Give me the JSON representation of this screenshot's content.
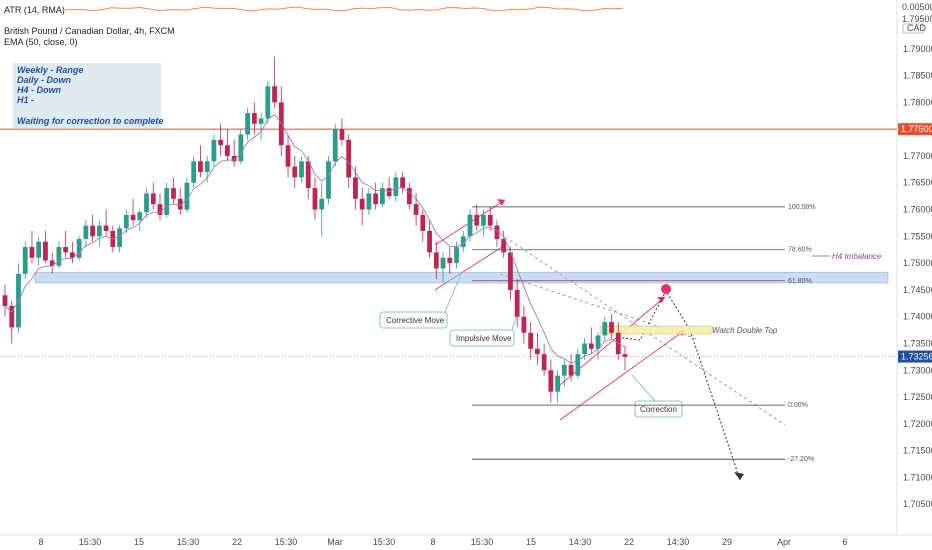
{
  "indicators": {
    "atr_label": "ATR (14, RMA)",
    "atr_value": "0.00500",
    "atr_unit": "CAD",
    "atr_scale": "1.79500"
  },
  "header": {
    "title": "British Pound / Canadian Dollar, 4h, FXCM",
    "ema_label": "EMA (50, close, 0)"
  },
  "notes_box": {
    "lines": [
      "Weekly  - Range",
      "Daily    - Down",
      "H4       - Down",
      "H1       -",
      "",
      "Waiting for correction to complete"
    ]
  },
  "callouts": {
    "corrective": "Corrective Move",
    "impulsive": "Impulsive Move",
    "correction": "Correction",
    "double_top": "Watch Double Top",
    "h4_imbalance": "H4 Imbalance"
  },
  "fib_levels": [
    {
      "label": "100.00%",
      "price": 1.7605
    },
    {
      "label": "78.60%",
      "price": 1.7525
    },
    {
      "label": "61.80%",
      "price": 1.7467
    },
    {
      "label": "0.00%",
      "price": 1.7235
    },
    {
      "label": "-27.20%",
      "price": 1.7134
    }
  ],
  "price_tags": [
    {
      "text": "1.77500",
      "price": 1.775,
      "color": "#e8502a"
    },
    {
      "text": "1.73256",
      "price": 1.73256,
      "color": "#1f4fa3"
    }
  ],
  "colors": {
    "bull": "#2a9d8f",
    "bear": "#c0244f",
    "ema": "#9b7bc0",
    "atr": "#f08a3c",
    "resistance": "#e8502a",
    "zone": "#9fc3ea",
    "channel": "#e8306a",
    "target": "#e8306a"
  },
  "chart_data": {
    "type": "candlestick",
    "title": "British Pound / Canadian Dollar, 4h, FXCM",
    "ylim": [
      1.7,
      1.795
    ],
    "y_ticks": [
      "1.79000",
      "1.78500",
      "1.78000",
      "1.77000",
      "1.76500",
      "1.76000",
      "1.75500",
      "1.75000",
      "1.74500",
      "1.74000",
      "1.73500",
      "1.73000",
      "1.72500",
      "1.72000",
      "1.71500",
      "1.71000",
      "1.70500"
    ],
    "x_ticks": [
      "8",
      "15:30",
      "15",
      "15:30",
      "22",
      "15:30",
      "Mar",
      "15:30",
      "8",
      "15:30",
      "15",
      "14:30",
      "22",
      "14:30",
      "29",
      "Apr",
      "6"
    ],
    "ema_period": 50,
    "resistance_line": 1.775,
    "current_price": 1.73256,
    "zones": [
      {
        "name": "demand-zone",
        "price_top": 1.7483,
        "price_bottom": 1.7463
      }
    ],
    "candles": [
      [
        1.744,
        1.746,
        1.74,
        1.742
      ],
      [
        1.742,
        1.743,
        1.735,
        1.738
      ],
      [
        1.738,
        1.75,
        1.737,
        1.748
      ],
      [
        1.748,
        1.754,
        1.747,
        1.753
      ],
      [
        1.753,
        1.756,
        1.75,
        1.751
      ],
      [
        1.751,
        1.755,
        1.7495,
        1.754
      ],
      [
        1.754,
        1.756,
        1.75,
        1.7505
      ],
      [
        1.7505,
        1.752,
        1.748,
        1.7495
      ],
      [
        1.7495,
        1.754,
        1.749,
        1.753
      ],
      [
        1.753,
        1.756,
        1.751,
        1.752
      ],
      [
        1.752,
        1.754,
        1.75,
        1.751
      ],
      [
        1.751,
        1.755,
        1.7505,
        1.7545
      ],
      [
        1.7545,
        1.758,
        1.753,
        1.757
      ],
      [
        1.757,
        1.759,
        1.754,
        1.755
      ],
      [
        1.755,
        1.758,
        1.753,
        1.757
      ],
      [
        1.757,
        1.76,
        1.755,
        1.756
      ],
      [
        1.756,
        1.757,
        1.752,
        1.753
      ],
      [
        1.753,
        1.757,
        1.752,
        1.7565
      ],
      [
        1.7565,
        1.76,
        1.7555,
        1.759
      ],
      [
        1.759,
        1.762,
        1.757,
        1.758
      ],
      [
        1.758,
        1.76,
        1.756,
        1.7595
      ],
      [
        1.7595,
        1.764,
        1.7585,
        1.763
      ],
      [
        1.763,
        1.765,
        1.76,
        1.761
      ],
      [
        1.761,
        1.763,
        1.758,
        1.759
      ],
      [
        1.759,
        1.765,
        1.7585,
        1.764
      ],
      [
        1.764,
        1.766,
        1.761,
        1.762
      ],
      [
        1.762,
        1.764,
        1.759,
        1.76
      ],
      [
        1.76,
        1.766,
        1.7595,
        1.765
      ],
      [
        1.765,
        1.77,
        1.764,
        1.769
      ],
      [
        1.769,
        1.772,
        1.766,
        1.767
      ],
      [
        1.767,
        1.77,
        1.765,
        1.769
      ],
      [
        1.769,
        1.774,
        1.768,
        1.773
      ],
      [
        1.773,
        1.776,
        1.77,
        1.772
      ],
      [
        1.772,
        1.775,
        1.769,
        1.77
      ],
      [
        1.77,
        1.773,
        1.768,
        1.769
      ],
      [
        1.769,
        1.775,
        1.7685,
        1.774
      ],
      [
        1.774,
        1.779,
        1.773,
        1.778
      ],
      [
        1.778,
        1.78,
        1.774,
        1.776
      ],
      [
        1.776,
        1.778,
        1.773,
        1.777
      ],
      [
        1.777,
        1.784,
        1.776,
        1.783
      ],
      [
        1.783,
        1.7885,
        1.779,
        1.78
      ],
      [
        1.78,
        1.783,
        1.77,
        1.772
      ],
      [
        1.772,
        1.774,
        1.766,
        1.768
      ],
      [
        1.768,
        1.77,
        1.764,
        1.766
      ],
      [
        1.766,
        1.77,
        1.765,
        1.769
      ],
      [
        1.769,
        1.77,
        1.762,
        1.764
      ],
      [
        1.764,
        1.766,
        1.758,
        1.76
      ],
      [
        1.76,
        1.765,
        1.755,
        1.762
      ],
      [
        1.762,
        1.77,
        1.761,
        1.769
      ],
      [
        1.769,
        1.776,
        1.768,
        1.775
      ],
      [
        1.775,
        1.777,
        1.772,
        1.773
      ],
      [
        1.773,
        1.774,
        1.764,
        1.766
      ],
      [
        1.766,
        1.768,
        1.76,
        1.762
      ],
      [
        1.762,
        1.764,
        1.757,
        1.76
      ],
      [
        1.76,
        1.764,
        1.759,
        1.763
      ],
      [
        1.763,
        1.765,
        1.76,
        1.761
      ],
      [
        1.761,
        1.765,
        1.7605,
        1.764
      ],
      [
        1.764,
        1.766,
        1.762,
        1.7625
      ],
      [
        1.7625,
        1.767,
        1.7615,
        1.766
      ],
      [
        1.766,
        1.767,
        1.763,
        1.764
      ],
      [
        1.764,
        1.765,
        1.76,
        1.761
      ],
      [
        1.761,
        1.763,
        1.757,
        1.759
      ],
      [
        1.759,
        1.76,
        1.754,
        1.756
      ],
      [
        1.756,
        1.758,
        1.751,
        1.752
      ],
      [
        1.752,
        1.754,
        1.747,
        1.749
      ],
      [
        1.749,
        1.752,
        1.7465,
        1.751
      ],
      [
        1.751,
        1.753,
        1.748,
        1.75
      ],
      [
        1.75,
        1.754,
        1.749,
        1.753
      ],
      [
        1.753,
        1.756,
        1.752,
        1.755
      ],
      [
        1.755,
        1.76,
        1.754,
        1.759
      ],
      [
        1.759,
        1.761,
        1.756,
        1.757
      ],
      [
        1.757,
        1.76,
        1.755,
        1.759
      ],
      [
        1.759,
        1.7605,
        1.756,
        1.757
      ],
      [
        1.757,
        1.758,
        1.753,
        1.7545
      ],
      [
        1.7545,
        1.756,
        1.751,
        1.752
      ],
      [
        1.752,
        1.753,
        1.743,
        1.745
      ],
      [
        1.745,
        1.747,
        1.738,
        1.74
      ],
      [
        1.74,
        1.742,
        1.735,
        1.737
      ],
      [
        1.737,
        1.739,
        1.732,
        1.734
      ],
      [
        1.734,
        1.737,
        1.731,
        1.733
      ],
      [
        1.733,
        1.735,
        1.729,
        1.73
      ],
      [
        1.73,
        1.732,
        1.724,
        1.726
      ],
      [
        1.726,
        1.73,
        1.724,
        1.729
      ],
      [
        1.729,
        1.732,
        1.727,
        1.731
      ],
      [
        1.731,
        1.733,
        1.728,
        1.729
      ],
      [
        1.729,
        1.734,
        1.7285,
        1.733
      ],
      [
        1.733,
        1.736,
        1.732,
        1.735
      ],
      [
        1.735,
        1.738,
        1.733,
        1.734
      ],
      [
        1.734,
        1.737,
        1.732,
        1.7365
      ],
      [
        1.7365,
        1.74,
        1.7355,
        1.739
      ],
      [
        1.739,
        1.7405,
        1.736,
        1.737
      ],
      [
        1.737,
        1.739,
        1.732,
        1.733
      ],
      [
        1.733,
        1.7345,
        1.73,
        1.7325
      ]
    ]
  }
}
